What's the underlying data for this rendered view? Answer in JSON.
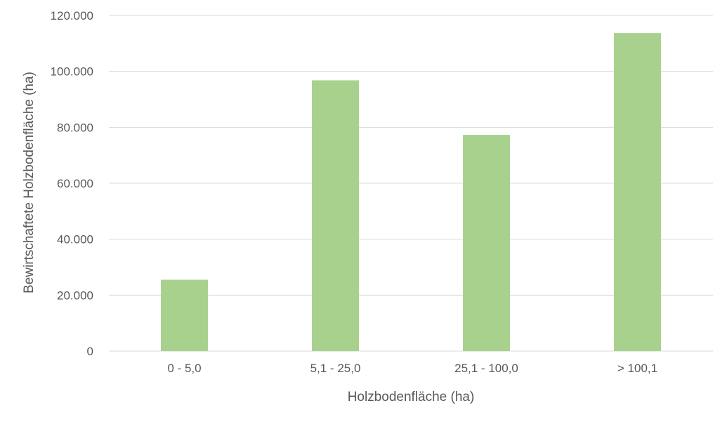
{
  "chart_data": {
    "type": "bar",
    "title": "",
    "xlabel": "Holzbodenfläche (ha)",
    "ylabel": "Bewirtschaftete Holzbodenfläche (ha)",
    "categories": [
      "0 - 5,0",
      "5,1 - 25,0",
      "25,1 - 100,0",
      "> 100,1"
    ],
    "values": [
      25500,
      96800,
      77300,
      113700
    ],
    "ylim": [
      0,
      120000
    ],
    "yticks": [
      0,
      20000,
      40000,
      60000,
      80000,
      100000,
      120000
    ],
    "ytick_labels": [
      "0",
      "20.000",
      "40.000",
      "60.000",
      "80.000",
      "100.000",
      "120.000"
    ],
    "grid": true,
    "legend": "none",
    "colors": {
      "bar": "#a9d18e",
      "grid": "#d9d9d9",
      "text": "#595959"
    }
  }
}
